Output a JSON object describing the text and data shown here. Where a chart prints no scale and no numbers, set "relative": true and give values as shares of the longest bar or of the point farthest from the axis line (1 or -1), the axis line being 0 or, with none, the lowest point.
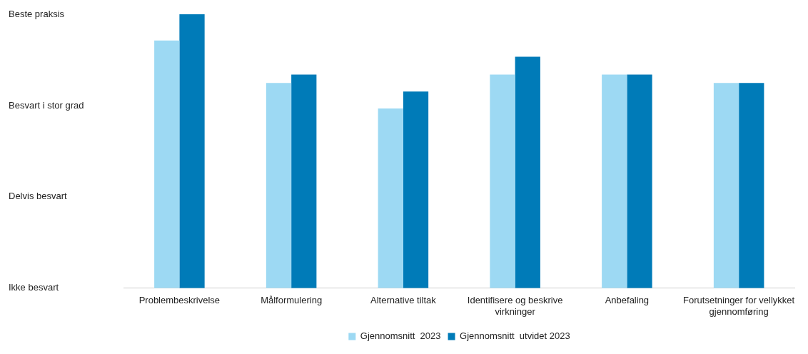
{
  "chart_data": {
    "type": "bar",
    "relative": true,
    "categories": [
      "Problembeskrivelse",
      "Målformulering",
      "Alternative tiltak",
      "Identifisere og beskrive virkninger",
      "Anbefaling",
      "Forutsetninger for vellykket gjennomføring"
    ],
    "series": [
      {
        "name": "Gjennomsnitt  2023",
        "color": "#9dd9f3",
        "values": [
          0.904,
          0.749,
          0.656,
          0.78,
          0.78,
          0.749
        ]
      },
      {
        "name": "Gjennomsnitt  utvidet 2023",
        "color": "#007bb8",
        "values": [
          1,
          0.78,
          0.718,
          0.845,
          0.78,
          0.749
        ]
      }
    ],
    "annotations": [
      "Beste praksis",
      "Besvart i stor grad",
      "Delvis besvart",
      "Ikke besvart"
    ],
    "grid": false,
    "legend": "bottom"
  }
}
